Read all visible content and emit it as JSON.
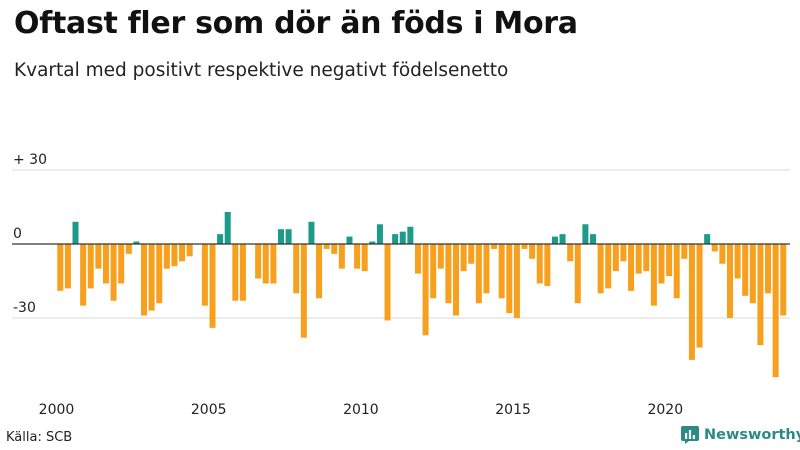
{
  "header": {
    "title": "Oftast fler som dör än föds i Mora",
    "subtitle": "Kvartal med positivt respektive negativt födelsenetto"
  },
  "footer": {
    "source": "Källa: SCB",
    "brand": "Newsworthy"
  },
  "colors": {
    "positive": "#1c9a8a",
    "negative": "#f7a01d",
    "grid": "#d9d9d9",
    "zero_line": "#333333",
    "brand": "#2a8a86"
  },
  "chart_data": {
    "type": "bar",
    "title": "Oftast fler som dör än föds i Mora",
    "subtitle": "Kvartal med positivt respektive negativt födelsenetto",
    "xlabel": "",
    "ylabel": "",
    "ylim": [
      -55,
      30
    ],
    "y_ticks": [
      {
        "value": 30,
        "label": "+ 30"
      },
      {
        "value": 0,
        "label": "0"
      },
      {
        "value": -30,
        "label": "-30"
      }
    ],
    "x_ticks": [
      "2000",
      "2005",
      "2010",
      "2015",
      "2020"
    ],
    "start_year": 2000,
    "end_year": 2024,
    "categories": [
      "2000 Q1",
      "2000 Q2",
      "2000 Q3",
      "2000 Q4",
      "2001 Q1",
      "2001 Q2",
      "2001 Q3",
      "2001 Q4",
      "2002 Q1",
      "2002 Q2",
      "2002 Q3",
      "2002 Q4",
      "2003 Q1",
      "2003 Q2",
      "2003 Q3",
      "2003 Q4",
      "2004 Q1",
      "2004 Q2",
      "2004 Q3",
      "2004 Q4",
      "2005 Q1",
      "2005 Q2",
      "2005 Q3",
      "2005 Q4",
      "2006 Q1",
      "2006 Q2",
      "2006 Q3",
      "2006 Q4",
      "2007 Q1",
      "2007 Q2",
      "2007 Q3",
      "2007 Q4",
      "2008 Q1",
      "2008 Q2",
      "2008 Q3",
      "2008 Q4",
      "2009 Q1",
      "2009 Q2",
      "2009 Q3",
      "2009 Q4",
      "2010 Q1",
      "2010 Q2",
      "2010 Q3",
      "2010 Q4",
      "2011 Q1",
      "2011 Q2",
      "2011 Q3",
      "2011 Q4",
      "2012 Q1",
      "2012 Q2",
      "2012 Q3",
      "2012 Q4",
      "2013 Q1",
      "2013 Q2",
      "2013 Q3",
      "2013 Q4",
      "2014 Q1",
      "2014 Q2",
      "2014 Q3",
      "2014 Q4",
      "2015 Q1",
      "2015 Q2",
      "2015 Q3",
      "2015 Q4",
      "2016 Q1",
      "2016 Q2",
      "2016 Q3",
      "2016 Q4",
      "2017 Q1",
      "2017 Q2",
      "2017 Q3",
      "2017 Q4",
      "2018 Q1",
      "2018 Q2",
      "2018 Q3",
      "2018 Q4",
      "2019 Q1",
      "2019 Q2",
      "2019 Q3",
      "2019 Q4",
      "2020 Q1",
      "2020 Q2",
      "2020 Q3",
      "2020 Q4",
      "2021 Q1",
      "2021 Q2",
      "2021 Q3",
      "2021 Q4",
      "2022 Q1",
      "2022 Q2",
      "2022 Q3",
      "2022 Q4",
      "2023 Q1",
      "2023 Q2",
      "2023 Q3",
      "2023 Q4"
    ],
    "values": [
      -19,
      -18,
      9,
      -25,
      -18,
      -10,
      -16,
      -23,
      -16,
      -4,
      1,
      -29,
      -27,
      -24,
      -10,
      -9,
      -7,
      -5,
      0,
      -25,
      -34,
      4,
      13,
      -23,
      -23,
      0,
      -14,
      -16,
      -16,
      6,
      6,
      -20,
      -38,
      9,
      -22,
      -2,
      -4,
      -10,
      3,
      -10,
      -11,
      1,
      8,
      -31,
      4,
      5,
      7,
      -12,
      -37,
      -22,
      -10,
      -24,
      -29,
      -11,
      -8,
      -24,
      -20,
      -2,
      -22,
      -28,
      -30,
      -2,
      -6,
      -16,
      -17,
      3,
      4,
      -7,
      -24,
      8,
      4,
      -20,
      -18,
      -11,
      -7,
      -19,
      -12,
      -11,
      -25,
      -16,
      -13,
      -22,
      -6,
      -47,
      -42,
      4,
      -3,
      -8,
      -30,
      -14,
      -21,
      -24,
      -41,
      -20,
      -54,
      -29
    ]
  }
}
